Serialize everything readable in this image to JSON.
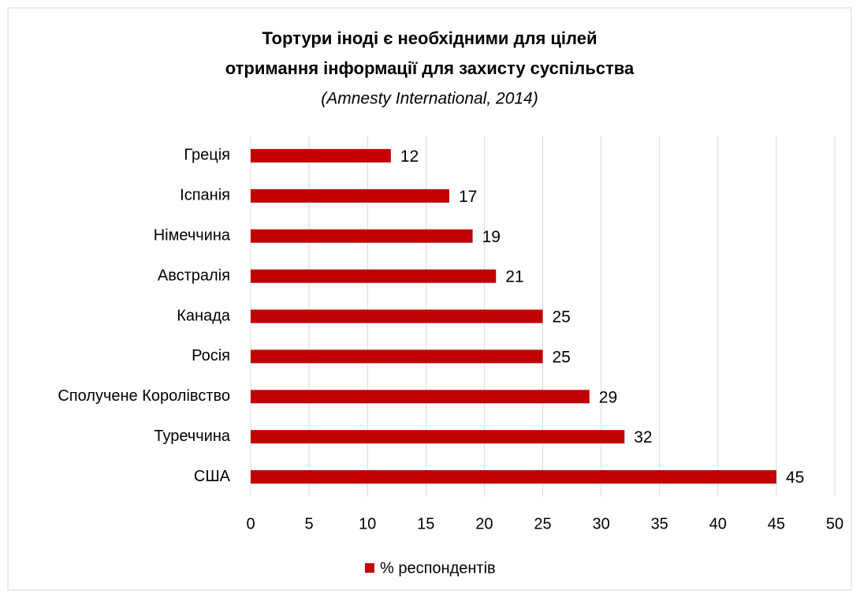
{
  "chart_data": {
    "type": "bar",
    "orientation": "horizontal",
    "title": [
      "Тортури іноді є необхідними для цілей",
      "отримання інформації для захисту суспільства"
    ],
    "subtitle": "(Amnesty International, 2014)",
    "categories": [
      "Греція",
      "Іспанія",
      "Німеччина",
      "Австралія",
      "Канада",
      "Росія",
      "Сполучене Королівство",
      "Туреччина",
      "США"
    ],
    "series": [
      {
        "name": "% респондентів",
        "color": "#c00000",
        "values": [
          12,
          17,
          19,
          21,
          25,
          25,
          29,
          32,
          45
        ]
      }
    ],
    "xlim": [
      0,
      50
    ],
    "xticks": [
      0,
      5,
      10,
      15,
      20,
      25,
      30,
      35,
      40,
      45,
      50
    ],
    "grid": true,
    "legend": "bottom"
  }
}
